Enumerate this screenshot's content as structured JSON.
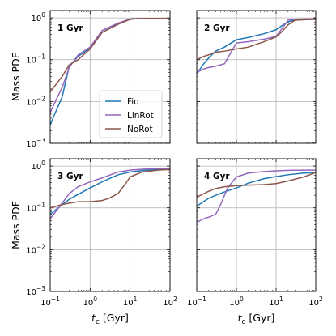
{
  "colors": {
    "Fid": "#1f77b4",
    "LinRot": "#9467bd",
    "NoRot": "#8c564b",
    "grid": "#b0b0b0",
    "axes": "#000000",
    "background": "#ffffff"
  },
  "chart_data": {
    "type": "line",
    "layout": "2x2 grid of panels, shared log x axis and log y axis",
    "xscale": "log",
    "yscale": "log",
    "xlim": [
      0.1,
      100
    ],
    "ylim": [
      0.001,
      1.5
    ],
    "grid": true,
    "xlabel": "t",
    "xlabel_sub": "c",
    "xlabel_unit": "[Gyr]",
    "ylabel": "Mass PDF",
    "x_tick_labels": [
      {
        "base": "10",
        "exp": "−1"
      },
      {
        "base": "10",
        "exp": "0"
      },
      {
        "base": "10",
        "exp": "1"
      },
      {
        "base": "10",
        "exp": "2"
      }
    ],
    "y_tick_labels": [
      {
        "base": "10",
        "exp": "−3"
      },
      {
        "base": "10",
        "exp": "−2"
      },
      {
        "base": "10",
        "exp": "−1"
      },
      {
        "base": "10",
        "exp": "0"
      }
    ],
    "legend": {
      "placement": "lower-right of first panel",
      "entries": [
        "Fid",
        "LinRot",
        "NoRot"
      ]
    },
    "panels": [
      {
        "label": "1 Gyr",
        "series": [
          {
            "name": "Fid",
            "x": [
              0.1,
              0.2,
              0.3,
              0.5,
              1,
              2,
              5,
              10,
              15,
              30,
              100
            ],
            "y": [
              0.0028,
              0.013,
              0.07,
              0.12,
              0.19,
              0.45,
              0.72,
              0.93,
              0.96,
              0.97,
              0.97
            ]
          },
          {
            "name": "LinRot",
            "x": [
              0.1,
              0.2,
              0.3,
              0.5,
              1,
              2,
              5,
              10,
              15,
              30,
              100
            ],
            "y": [
              0.0055,
              0.022,
              0.065,
              0.13,
              0.2,
              0.5,
              0.75,
              0.94,
              0.96,
              0.97,
              0.97
            ]
          },
          {
            "name": "NoRot",
            "x": [
              0.1,
              0.2,
              0.3,
              0.5,
              1,
              2,
              5,
              10,
              15,
              30,
              100
            ],
            "y": [
              0.017,
              0.04,
              0.075,
              0.1,
              0.18,
              0.45,
              0.7,
              0.92,
              0.96,
              0.97,
              0.97
            ]
          }
        ]
      },
      {
        "label": "2 Gyr",
        "series": [
          {
            "name": "Fid",
            "x": [
              0.1,
              0.15,
              0.2,
              0.3,
              0.5,
              1,
              2,
              5,
              10,
              15,
              20,
              30,
              100
            ],
            "y": [
              0.045,
              0.08,
              0.11,
              0.16,
              0.2,
              0.3,
              0.34,
              0.42,
              0.52,
              0.68,
              0.8,
              0.9,
              0.93
            ]
          },
          {
            "name": "LinRot",
            "x": [
              0.1,
              0.15,
              0.2,
              0.3,
              0.5,
              1,
              2,
              5,
              10,
              15,
              20,
              30,
              100
            ],
            "y": [
              0.05,
              0.06,
              0.065,
              0.07,
              0.08,
              0.25,
              0.27,
              0.31,
              0.36,
              0.6,
              0.88,
              0.93,
              0.95
            ]
          },
          {
            "name": "NoRot",
            "x": [
              0.1,
              0.15,
              0.2,
              0.3,
              0.5,
              1,
              2,
              5,
              10,
              15,
              20,
              30,
              100
            ],
            "y": [
              0.1,
              0.12,
              0.13,
              0.15,
              0.16,
              0.18,
              0.2,
              0.27,
              0.35,
              0.5,
              0.68,
              0.88,
              0.93
            ]
          }
        ]
      },
      {
        "label": "3 Gyr",
        "series": [
          {
            "name": "Fid",
            "x": [
              0.1,
              0.2,
              0.3,
              0.5,
              1,
              2,
              5,
              10,
              20,
              50,
              100
            ],
            "y": [
              0.07,
              0.12,
              0.16,
              0.21,
              0.3,
              0.42,
              0.62,
              0.72,
              0.78,
              0.83,
              0.85
            ]
          },
          {
            "name": "LinRot",
            "x": [
              0.1,
              0.2,
              0.3,
              0.5,
              1,
              2,
              5,
              10,
              20,
              50,
              100
            ],
            "y": [
              0.055,
              0.13,
              0.22,
              0.32,
              0.42,
              0.52,
              0.72,
              0.8,
              0.84,
              0.87,
              0.88
            ]
          },
          {
            "name": "NoRot",
            "x": [
              0.1,
              0.2,
              0.3,
              0.5,
              1,
              2,
              3,
              5,
              8,
              10,
              20,
              50,
              100
            ],
            "y": [
              0.1,
              0.12,
              0.13,
              0.14,
              0.14,
              0.15,
              0.17,
              0.22,
              0.4,
              0.55,
              0.72,
              0.8,
              0.83
            ]
          }
        ]
      },
      {
        "label": "4 Gyr",
        "series": [
          {
            "name": "Fid",
            "x": [
              0.1,
              0.2,
              0.3,
              0.5,
              1,
              2,
              5,
              10,
              20,
              50,
              100
            ],
            "y": [
              0.11,
              0.17,
              0.2,
              0.24,
              0.3,
              0.39,
              0.5,
              0.56,
              0.62,
              0.68,
              0.7
            ]
          },
          {
            "name": "LinRot",
            "x": [
              0.1,
              0.15,
              0.2,
              0.3,
              0.4,
              0.6,
              1,
              2,
              5,
              10,
              20,
              50,
              100
            ],
            "y": [
              0.045,
              0.055,
              0.06,
              0.07,
              0.12,
              0.3,
              0.55,
              0.68,
              0.74,
              0.77,
              0.79,
              0.8,
              0.8
            ]
          },
          {
            "name": "NoRot",
            "x": [
              0.1,
              0.2,
              0.3,
              0.5,
              1,
              2,
              5,
              10,
              20,
              50,
              100
            ],
            "y": [
              0.18,
              0.25,
              0.29,
              0.32,
              0.34,
              0.35,
              0.36,
              0.38,
              0.44,
              0.55,
              0.7
            ]
          }
        ]
      }
    ]
  }
}
